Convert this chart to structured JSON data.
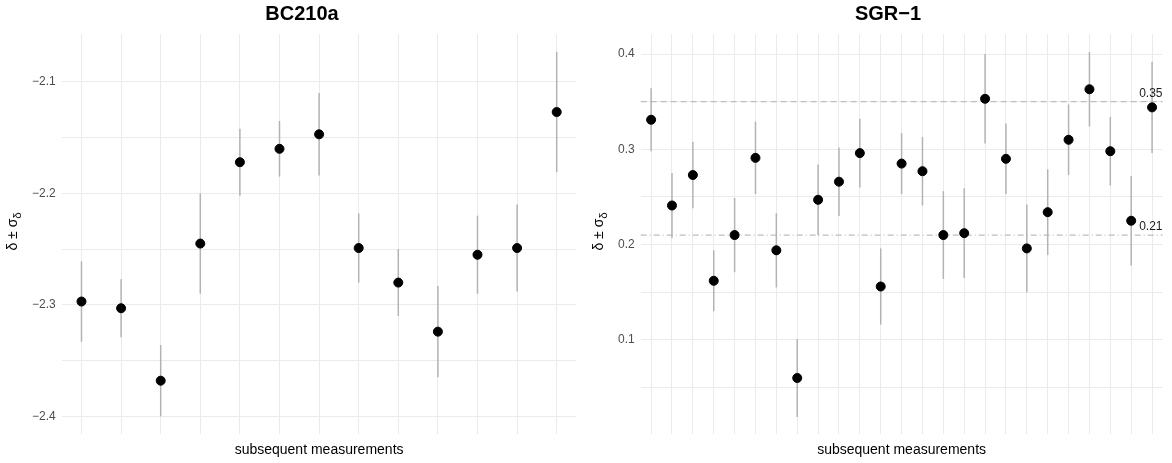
{
  "chart_data": [
    {
      "type": "scatter",
      "title": "BC210a",
      "xlabel": "subsequent measurements",
      "ylabel": "δ ± σ$_{δ}$",
      "categories": [
        null,
        null,
        null,
        null,
        null,
        null,
        null,
        null,
        null,
        null,
        null,
        null,
        null
      ],
      "series": [
        {
          "color": "#000000",
          "values": [
            -2.297,
            -2.303,
            -2.368,
            -2.245,
            -2.172,
            -2.16,
            -2.147,
            -2.249,
            -2.28,
            -2.324,
            -2.255,
            -2.249,
            -2.127
          ],
          "errors": [
            0.036,
            0.026,
            0.032,
            0.045,
            0.03,
            0.025,
            0.037,
            0.031,
            0.03,
            0.041,
            0.035,
            0.039,
            0.054
          ]
        }
      ],
      "ylim": [
        -2.416,
        -2.057
      ],
      "yticks": [
        {
          "value": -2.4,
          "label": "−2.4"
        },
        {
          "value": -2.35,
          "label": null
        },
        {
          "value": -2.3,
          "label": "−2.3"
        },
        {
          "value": -2.25,
          "label": null
        },
        {
          "value": -2.2,
          "label": "−2.2"
        },
        {
          "value": -2.15,
          "label": null
        },
        {
          "value": -2.1,
          "label": "−2.1"
        }
      ],
      "tick_labels": "y",
      "grid": true,
      "legend": false,
      "marker": "circle"
    },
    {
      "type": "scatter",
      "title": "SGR−1",
      "xlabel": "subsequent measurements",
      "ylabel": "δ ± σ$_{δ}$",
      "categories": [
        null,
        null,
        null,
        null,
        null,
        null,
        null,
        null,
        null,
        null,
        null,
        null,
        null,
        null,
        null,
        null,
        null,
        null,
        null,
        null,
        null,
        null,
        null,
        null,
        null
      ],
      "series": [
        {
          "color": "#000000",
          "values": [
            0.331,
            0.241,
            0.273,
            0.162,
            0.21,
            0.291,
            0.194,
            0.06,
            0.247,
            0.266,
            0.296,
            0.156,
            0.285,
            0.277,
            0.21,
            0.212,
            0.353,
            0.29,
            0.196,
            0.234,
            0.31,
            0.363,
            0.298,
            0.225,
            0.344
          ],
          "errors": [
            0.033,
            0.034,
            0.035,
            0.032,
            0.039,
            0.038,
            0.039,
            0.041,
            0.037,
            0.036,
            0.036,
            0.04,
            0.032,
            0.036,
            0.046,
            0.047,
            0.047,
            0.037,
            0.046,
            0.045,
            0.037,
            0.039,
            0.036,
            0.047,
            0.048
          ]
        }
      ],
      "ylim": [
        0.001,
        0.421
      ],
      "yticks": [
        {
          "value": 0.05,
          "label": null
        },
        0.1,
        {
          "value": 0.15,
          "label": null
        },
        0.2,
        {
          "value": 0.25,
          "label": null
        },
        0.3,
        {
          "value": 0.35,
          "label": null
        },
        0.4
      ],
      "ref_lines": [
        {
          "axis": "y",
          "value": 0.35,
          "label": "0.35",
          "color": "#bdbdbd",
          "line_style": "dashed"
        },
        {
          "axis": "y",
          "value": 0.21,
          "label": "0.21",
          "color": "#bdbdbd",
          "line_style": "dotted"
        }
      ],
      "tick_labels": "y",
      "grid": true,
      "legend": false,
      "marker": "circle"
    }
  ]
}
